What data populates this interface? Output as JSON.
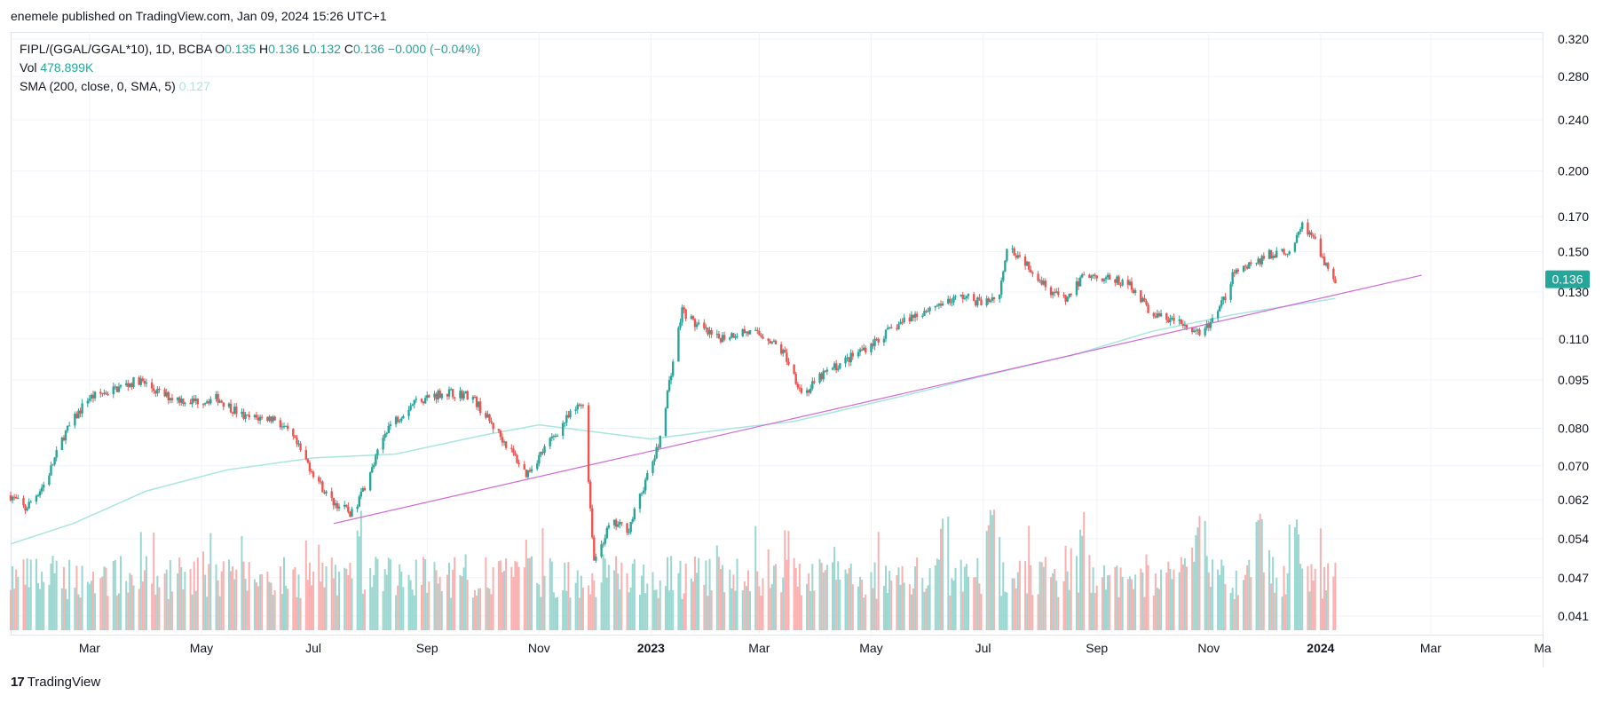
{
  "caption": "enemele published on TradingView.com, Jan 09, 2024 15:26 UTC+1",
  "legend": {
    "symbol": "FIPL/(GGAL/GGAL*10), 1D, BCBA",
    "o_label": "O",
    "o_value": "0.135",
    "h_label": "H",
    "h_value": "0.136",
    "l_label": "L",
    "l_value": "0.132",
    "c_label": "C",
    "c_value": "0.136",
    "change": "−0.000 (−0.04%)",
    "vol_label": "Vol",
    "vol_value": "478.899K",
    "sma_label": "SMA (200, close, 0, SMA, 5)",
    "sma_value": "0.127"
  },
  "footer": {
    "brand": "TradingView",
    "mark": "17"
  },
  "colors": {
    "up": "#26a69a",
    "down": "#ef5350",
    "sma": "#a8e6de",
    "trendline": "#d26ad6",
    "grid": "#f0f3fa",
    "last_price_bg": "#26a69a"
  },
  "chart_data": {
    "type": "candlestick",
    "title": "FIPL/(GGAL/GGAL*10), 1D, BCBA",
    "y_scale": "log",
    "y_ticks": [
      "0.320",
      "0.280",
      "0.240",
      "0.200",
      "0.170",
      "0.150",
      "0.130",
      "0.110",
      "0.095",
      "0.080",
      "0.070",
      "0.062",
      "0.054",
      "0.047",
      "0.041"
    ],
    "x_ticks": [
      "Mar",
      "May",
      "Jul",
      "Sep",
      "Nov",
      "2023",
      "Mar",
      "May",
      "Jul",
      "Sep",
      "Nov",
      "2024",
      "Mar",
      "Ma"
    ],
    "x_tick_dates": [
      "2022-03-01",
      "2022-05-01",
      "2022-07-01",
      "2022-09-01",
      "2022-11-01",
      "2023-01-01",
      "2023-03-01",
      "2023-05-01",
      "2023-07-01",
      "2023-09-01",
      "2023-11-01",
      "2024-01-01",
      "2024-03-01",
      "2024-05-01"
    ],
    "x_range": [
      "2022-01-17",
      "2024-05-01"
    ],
    "last_price": "0.136",
    "price_path": [
      [
        "2022-01-17",
        0.063
      ],
      [
        "2022-01-25",
        0.06
      ],
      [
        "2022-02-05",
        0.066
      ],
      [
        "2022-02-15",
        0.078
      ],
      [
        "2022-02-28",
        0.089
      ],
      [
        "2022-03-15",
        0.092
      ],
      [
        "2022-03-28",
        0.095
      ],
      [
        "2022-04-10",
        0.09
      ],
      [
        "2022-04-25",
        0.088
      ],
      [
        "2022-05-10",
        0.089
      ],
      [
        "2022-05-25",
        0.083
      ],
      [
        "2022-06-10",
        0.083
      ],
      [
        "2022-06-20",
        0.077
      ],
      [
        "2022-06-30",
        0.069
      ],
      [
        "2022-07-10",
        0.062
      ],
      [
        "2022-07-22",
        0.059
      ],
      [
        "2022-08-01",
        0.068
      ],
      [
        "2022-08-10",
        0.08
      ],
      [
        "2022-08-25",
        0.088
      ],
      [
        "2022-09-10",
        0.091
      ],
      [
        "2022-09-25",
        0.09
      ],
      [
        "2022-10-05",
        0.082
      ],
      [
        "2022-10-15",
        0.075
      ],
      [
        "2022-10-25",
        0.068
      ],
      [
        "2022-11-05",
        0.075
      ],
      [
        "2022-11-15",
        0.082
      ],
      [
        "2022-11-25",
        0.088
      ],
      [
        "2022-12-01",
        0.05
      ],
      [
        "2022-12-10",
        0.057
      ],
      [
        "2022-12-20",
        0.056
      ],
      [
        "2022-12-28",
        0.065
      ],
      [
        "2023-01-05",
        0.075
      ],
      [
        "2023-01-12",
        0.098
      ],
      [
        "2023-01-18",
        0.122
      ],
      [
        "2023-01-25",
        0.116
      ],
      [
        "2023-02-05",
        0.11
      ],
      [
        "2023-02-20",
        0.113
      ],
      [
        "2023-03-05",
        0.111
      ],
      [
        "2023-03-15",
        0.104
      ],
      [
        "2023-03-25",
        0.09
      ],
      [
        "2023-04-05",
        0.097
      ],
      [
        "2023-04-20",
        0.103
      ],
      [
        "2023-05-05",
        0.11
      ],
      [
        "2023-05-20",
        0.118
      ],
      [
        "2023-06-05",
        0.124
      ],
      [
        "2023-06-20",
        0.128
      ],
      [
        "2023-07-01",
        0.125
      ],
      [
        "2023-07-10",
        0.129
      ],
      [
        "2023-07-14",
        0.154
      ],
      [
        "2023-07-25",
        0.144
      ],
      [
        "2023-08-05",
        0.132
      ],
      [
        "2023-08-15",
        0.126
      ],
      [
        "2023-08-25",
        0.138
      ],
      [
        "2023-09-05",
        0.137
      ],
      [
        "2023-09-20",
        0.133
      ],
      [
        "2023-10-01",
        0.12
      ],
      [
        "2023-10-15",
        0.117
      ],
      [
        "2023-10-25",
        0.112
      ],
      [
        "2023-11-05",
        0.118
      ],
      [
        "2023-11-15",
        0.14
      ],
      [
        "2023-11-25",
        0.144
      ],
      [
        "2023-12-05",
        0.149
      ],
      [
        "2023-12-15",
        0.15
      ],
      [
        "2023-12-22",
        0.164
      ],
      [
        "2023-12-28",
        0.16
      ],
      [
        "2024-01-03",
        0.143
      ],
      [
        "2024-01-09",
        0.136
      ]
    ],
    "sma_path": [
      [
        "2022-01-17",
        0.053
      ],
      [
        "2022-02-20",
        0.057
      ],
      [
        "2022-04-01",
        0.064
      ],
      [
        "2022-05-15",
        0.069
      ],
      [
        "2022-07-01",
        0.072
      ],
      [
        "2022-08-15",
        0.073
      ],
      [
        "2022-10-01",
        0.078
      ],
      [
        "2022-11-01",
        0.081
      ],
      [
        "2023-01-01",
        0.077
      ],
      [
        "2023-02-15",
        0.08
      ],
      [
        "2023-03-20",
        0.082
      ],
      [
        "2023-05-20",
        0.09
      ],
      [
        "2023-07-05",
        0.097
      ],
      [
        "2023-08-20",
        0.104
      ],
      [
        "2023-10-01",
        0.113
      ],
      [
        "2023-11-15",
        0.12
      ],
      [
        "2024-01-09",
        0.127
      ]
    ],
    "trendline": [
      [
        "2022-07-12",
        0.057
      ],
      [
        "2024-02-25",
        0.138
      ]
    ],
    "volume_peak_dates": [
      "2022-07-25",
      "2023-06-10",
      "2023-07-05",
      "2023-08-25",
      "2023-10-28",
      "2023-11-28",
      "2023-12-18"
    ]
  }
}
